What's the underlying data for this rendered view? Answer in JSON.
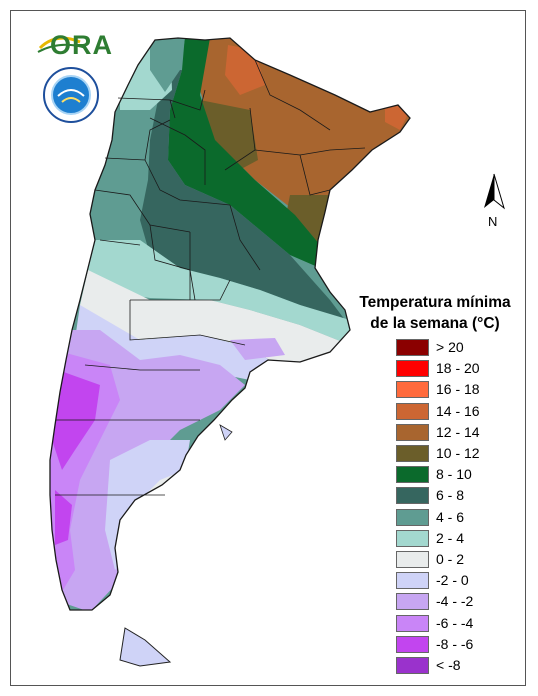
{
  "legend": {
    "title_line1": "Temperatura mínima",
    "title_line2": "de la semana (°C)",
    "classes": [
      {
        "label": "> 20",
        "color": "#8b0000"
      },
      {
        "label": "18 - 20",
        "color": "#ff0000"
      },
      {
        "label": "16 - 18",
        "color": "#ff6a3c"
      },
      {
        "label": "14 - 16",
        "color": "#cc6633"
      },
      {
        "label": "12 - 14",
        "color": "#a8652f"
      },
      {
        "label": "10 - 12",
        "color": "#6b5e2a"
      },
      {
        "label": "8 - 10",
        "color": "#0b6a2c"
      },
      {
        "label": "6 - 8",
        "color": "#36665f"
      },
      {
        "label": "4 - 6",
        "color": "#5f9c92"
      },
      {
        "label": "2 - 4",
        "color": "#a3d8cf"
      },
      {
        "label": "0 - 2",
        "color": "#e9ecec"
      },
      {
        "label": "-2 - 0",
        "color": "#cfd3f7"
      },
      {
        "label": "-4 - -2",
        "color": "#c7a6f2"
      },
      {
        "label": "-6 - -4",
        "color": "#c985f7"
      },
      {
        "label": "-8 - -6",
        "color": "#c245ef"
      },
      {
        "label": "< -8",
        "color": "#9a32cc"
      }
    ]
  },
  "logos": {
    "ora_text": "ORA"
  },
  "north_arrow": {
    "label": "N"
  },
  "icons": {
    "ora_logo": "ora-logo-icon",
    "smn_seal": "smn-seal-icon",
    "north_arrow": "north-arrow-icon"
  }
}
